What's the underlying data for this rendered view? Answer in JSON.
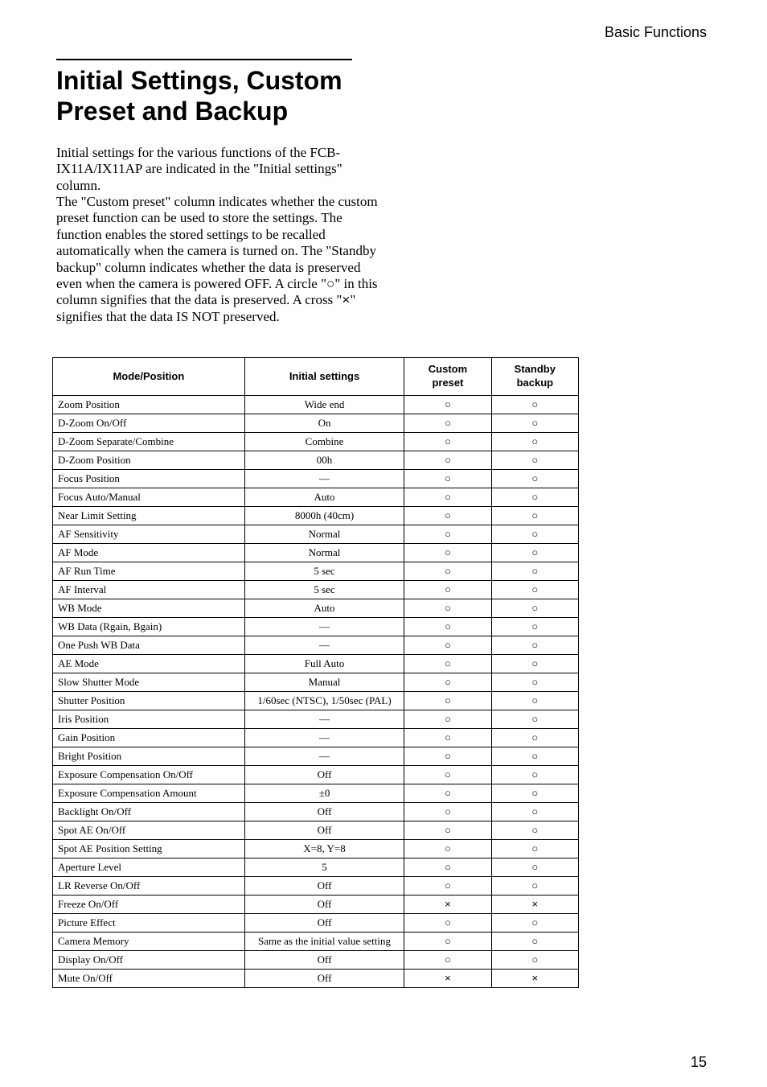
{
  "header_label": "Basic Functions",
  "title": "Initial Settings, Custom Preset and Backup",
  "intro": {
    "p1": "Initial settings for the various functions of the FCB-IX11A/IX11AP are indicated in the \"Initial settings\" column.",
    "p2a": "The \"Custom preset\" column indicates whether the custom preset function can be used to store the settings. The function enables the stored settings to be recalled automatically when the camera is turned on. The \"Standby backup\" column indicates whether the data is preserved even when the camera is powered OFF. A circle \"",
    "p2b": "\" in this column signifies that the data is preserved. A cross \"",
    "p2c": "\" signifies that the data IS NOT preserved."
  },
  "symbols": {
    "circle": "○",
    "cross": "×",
    "dash": "—"
  },
  "table": {
    "headers": {
      "mode": "Mode/Position",
      "init": "Initial settings",
      "preset": "Custom preset",
      "backup": "Standby backup"
    },
    "rows": [
      {
        "mode": "Zoom Position",
        "init": "Wide end",
        "preset": "○",
        "backup": "○"
      },
      {
        "mode": "D-Zoom On/Off",
        "init": "On",
        "preset": "○",
        "backup": "○"
      },
      {
        "mode": "D-Zoom Separate/Combine",
        "init": "Combine",
        "preset": "○",
        "backup": "○"
      },
      {
        "mode": "D-Zoom Position",
        "init": "00h",
        "preset": "○",
        "backup": "○"
      },
      {
        "mode": "Focus Position",
        "init": "—",
        "preset": "○",
        "backup": "○"
      },
      {
        "mode": "Focus Auto/Manual",
        "init": "Auto",
        "preset": "○",
        "backup": "○"
      },
      {
        "mode": "Near Limit Setting",
        "init": "8000h (40cm)",
        "preset": "○",
        "backup": "○"
      },
      {
        "mode": "AF Sensitivity",
        "init": "Normal",
        "preset": "○",
        "backup": "○"
      },
      {
        "mode": "AF Mode",
        "init": "Normal",
        "preset": "○",
        "backup": "○"
      },
      {
        "mode": "AF Run Time",
        "init": "5 sec",
        "preset": "○",
        "backup": "○"
      },
      {
        "mode": "AF Interval",
        "init": "5 sec",
        "preset": "○",
        "backup": "○"
      },
      {
        "mode": "WB Mode",
        "init": "Auto",
        "preset": "○",
        "backup": "○"
      },
      {
        "mode": "WB Data (Rgain, Bgain)",
        "init": "—",
        "preset": "○",
        "backup": "○"
      },
      {
        "mode": "One Push WB Data",
        "init": "—",
        "preset": "○",
        "backup": "○"
      },
      {
        "mode": "AE Mode",
        "init": "Full Auto",
        "preset": "○",
        "backup": "○"
      },
      {
        "mode": "Slow Shutter Mode",
        "init": "Manual",
        "preset": "○",
        "backup": "○"
      },
      {
        "mode": "Shutter Position",
        "init": "1/60sec (NTSC), 1/50sec (PAL)",
        "preset": "○",
        "backup": "○"
      },
      {
        "mode": "Iris Position",
        "init": "—",
        "preset": "○",
        "backup": "○"
      },
      {
        "mode": "Gain Position",
        "init": "—",
        "preset": "○",
        "backup": "○"
      },
      {
        "mode": "Bright Position",
        "init": "—",
        "preset": "○",
        "backup": "○"
      },
      {
        "mode": "Exposure Compensation On/Off",
        "init": "Off",
        "preset": "○",
        "backup": "○"
      },
      {
        "mode": "Exposure Compensation Amount",
        "init": "±0",
        "preset": "○",
        "backup": "○"
      },
      {
        "mode": "Backlight On/Off",
        "init": "Off",
        "preset": "○",
        "backup": "○"
      },
      {
        "mode": "Spot AE On/Off",
        "init": "Off",
        "preset": "○",
        "backup": "○"
      },
      {
        "mode": "Spot AE Position Setting",
        "init": "X=8, Y=8",
        "preset": "○",
        "backup": "○"
      },
      {
        "mode": "Aperture Level",
        "init": "5",
        "preset": "○",
        "backup": "○"
      },
      {
        "mode": "LR Reverse On/Off",
        "init": "Off",
        "preset": "○",
        "backup": "○"
      },
      {
        "mode": "Freeze On/Off",
        "init": "Off",
        "preset": "×",
        "backup": "×"
      },
      {
        "mode": "Picture Effect",
        "init": "Off",
        "preset": "○",
        "backup": "○"
      },
      {
        "mode": "Camera Memory",
        "init": "Same as the initial value setting",
        "preset": "○",
        "backup": "○"
      },
      {
        "mode": "Display On/Off",
        "init": "Off",
        "preset": "○",
        "backup": "○"
      },
      {
        "mode": "Mute On/Off",
        "init": "Off",
        "preset": "×",
        "backup": "×"
      }
    ]
  },
  "page_number": "15"
}
